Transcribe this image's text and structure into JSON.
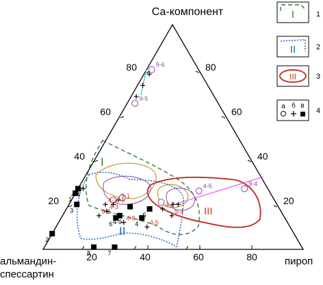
{
  "chart_data": {
    "type": "scatter",
    "axes": {
      "apex_top": "Са-компонент",
      "apex_left_line1": "альмандин-",
      "apex_left_line2": "спессартин",
      "apex_right": "пироп",
      "left_ticks": [
        "20",
        "40",
        "60",
        "80"
      ],
      "right_ticks": [
        "20",
        "40",
        "60",
        "80"
      ],
      "bottom_ticks": [
        "20",
        "40",
        "60",
        "80"
      ]
    },
    "field_labels": {
      "I": "I",
      "II": "II",
      "III": "III"
    },
    "legend": {
      "items": [
        {
          "key": "1",
          "symbol": "I"
        },
        {
          "key": "2",
          "symbol": "II"
        },
        {
          "key": "3",
          "symbol": "III"
        },
        {
          "key": "4",
          "sub_a": "а",
          "sub_b": "б",
          "sub_c": "в"
        }
      ]
    },
    "squares": [
      {
        "label": "1",
        "ca": 25,
        "py": 0
      },
      {
        "label": "2",
        "ca": 7,
        "py": 0
      },
      {
        "label": "3",
        "ca": 20,
        "py": 3
      },
      {
        "label": "4",
        "ca": 14,
        "py": 31
      },
      {
        "label": "5",
        "ca": 18,
        "py": 32
      },
      {
        "label": "6",
        "ca": 14,
        "py": 21
      },
      {
        "label": "7",
        "ca": 1,
        "py": 27
      },
      {
        "label": "8",
        "ca": 1,
        "py": 19
      },
      {
        "label": "4-4",
        "ca": 27,
        "py": 0
      },
      {
        "label": "4-9",
        "ca": 15,
        "py": 22
      },
      {
        "label": "",
        "ca": 19,
        "py": 24
      }
    ],
    "circles": [
      {
        "label": "9-6",
        "ca": 80,
        "py": 2
      },
      {
        "label": "4-6",
        "ca": 26,
        "py": 47
      },
      {
        "label": "9-4",
        "ca": 27,
        "py": 64
      },
      {
        "label": "9-5",
        "ca": 65,
        "py": 3
      },
      {
        "label": "",
        "ca": 22,
        "py": 16
      },
      {
        "label": "",
        "ca": 23,
        "py": 19
      },
      {
        "label": "",
        "ca": 21,
        "py": 35
      }
    ],
    "crosses": [
      {
        "label": "",
        "ca": 78,
        "py": 2
      },
      {
        "label": "",
        "ca": 73,
        "py": 2
      },
      {
        "label": "",
        "ca": 68,
        "py": 2
      },
      {
        "label": "",
        "ca": 27,
        "py": 2
      },
      {
        "label": "9-1",
        "ca": 22,
        "py": 18
      },
      {
        "label": "4-6",
        "ca": 20,
        "py": 17
      },
      {
        "label": "4-7",
        "ca": 18,
        "py": 37
      },
      {
        "label": "4-2",
        "ca": 20,
        "py": 14
      },
      {
        "label": "9-2",
        "ca": 15,
        "py": 14
      },
      {
        "label": "4-3",
        "ca": 17,
        "py": 16
      },
      {
        "label": "4-8",
        "ca": 12,
        "py": 25
      },
      {
        "label": "4-5",
        "ca": 10,
        "py": 35
      },
      {
        "label": "9-4",
        "ca": 15,
        "py": 42
      },
      {
        "label": "",
        "ca": 20,
        "py": 40
      },
      {
        "label": "",
        "ca": 20,
        "py": 42
      }
    ]
  }
}
